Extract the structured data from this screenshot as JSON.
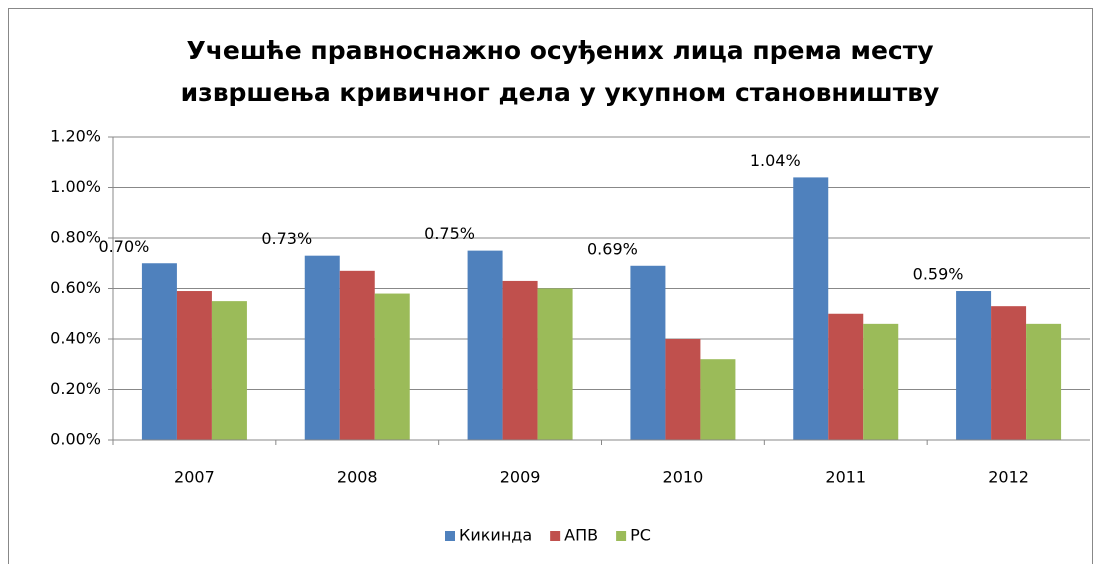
{
  "chart_data": {
    "type": "bar",
    "title": [
      "Учешће правноснажно осуђених лица према месту",
      "извршења кривичног дела у укупном становништву"
    ],
    "categories": [
      "2007",
      "2008",
      "2009",
      "2010",
      "2011",
      "2012"
    ],
    "series": [
      {
        "name": "Кикинда",
        "color": "#4f81bd",
        "values": [
          0.7,
          0.73,
          0.75,
          0.69,
          1.04,
          0.59
        ],
        "value_labels": [
          "0.70%",
          "0.73%",
          "0.75%",
          "0.69%",
          "1.04%",
          "0.59%"
        ]
      },
      {
        "name": "АПВ",
        "color": "#c0504d",
        "values": [
          0.59,
          0.67,
          0.63,
          0.4,
          0.5,
          0.53
        ]
      },
      {
        "name": "РС",
        "color": "#9bbb59",
        "values": [
          0.55,
          0.58,
          0.6,
          0.32,
          0.46,
          0.46
        ]
      }
    ],
    "ylim": [
      0,
      1.2
    ],
    "yticks": [
      {
        "value": 0,
        "label": "0.00%"
      },
      {
        "value": 0.2,
        "label": "0.20%"
      },
      {
        "value": 0.4,
        "label": "0.40%"
      },
      {
        "value": 0.6,
        "label": "0.60%"
      },
      {
        "value": 0.8,
        "label": "0.80%"
      },
      {
        "value": 1.0,
        "label": "1.00%"
      },
      {
        "value": 1.2,
        "label": "1.20%"
      }
    ],
    "grid": true,
    "legend": "bottom"
  }
}
